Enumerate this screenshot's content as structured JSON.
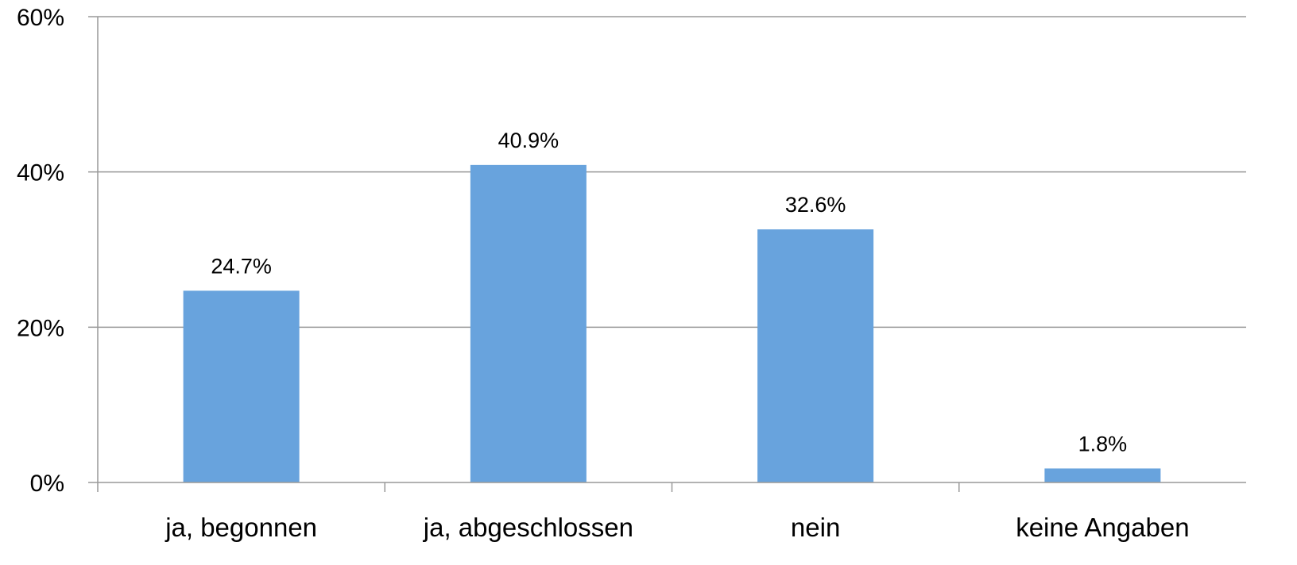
{
  "chart_data": {
    "type": "bar",
    "categories": [
      "ja, begonnen",
      "ja, abgeschlossen",
      "nein",
      "keine Angaben"
    ],
    "values": [
      24.7,
      40.9,
      32.6,
      1.8
    ],
    "data_labels": [
      "24.7%",
      "40.9%",
      "32.6%",
      "1.8%"
    ],
    "title": "",
    "xlabel": "",
    "ylabel": "",
    "ylim": [
      0,
      60
    ],
    "yticks": [
      0,
      20,
      40,
      60
    ],
    "ytick_labels": [
      "0%",
      "20%",
      "40%",
      "60%"
    ],
    "grid": true,
    "legend": "none",
    "colors": {
      "bar": "#68a3dd",
      "grid": "#999999",
      "axis": "#999999"
    }
  }
}
